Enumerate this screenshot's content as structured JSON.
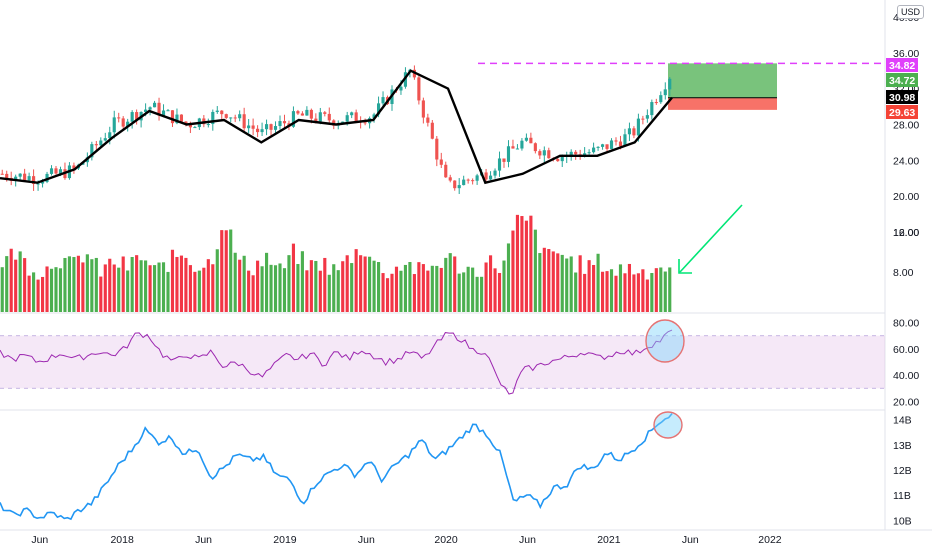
{
  "currency": "USD",
  "colors": {
    "up": "#26a69a",
    "down": "#ef5350",
    "volume_up": "#4caf50",
    "volume_down": "#f23645",
    "ma_line": "#000000",
    "rsi_line": "#9c27b0",
    "rsi_band": "#e1bee7",
    "obv_line": "#2196f3",
    "resistance": "#e040fb",
    "target_zone": "#4caf50",
    "stop_zone": "#f44336",
    "arrow": "#00e676",
    "highlight": "#81d4fa"
  },
  "chart_data": [
    {
      "type": "candlestick",
      "panel": "price",
      "ylim": [
        16,
        41
      ],
      "y_ticks": [
        "40.00",
        "36.00",
        "32.00",
        "28.00",
        "24.00",
        "20.00",
        "16.00"
      ],
      "x": [
        "2017-04",
        "2017-07",
        "2017-10",
        "2018-01",
        "2018-04",
        "2018-07",
        "2018-10",
        "2019-01",
        "2019-04",
        "2019-07",
        "2019-10",
        "2020-01",
        "2020-03",
        "2020-04",
        "2020-06",
        "2020-08",
        "2020-10",
        "2020-12",
        "2021-01"
      ],
      "close": [
        22.5,
        22,
        23,
        28,
        30,
        28,
        29.5,
        27,
        29,
        28.5,
        29,
        34,
        21,
        22.5,
        26,
        24.5,
        25,
        27,
        33.5
      ],
      "moving_average": [
        22,
        21.5,
        23,
        26.5,
        29.5,
        28,
        28.5,
        26,
        28.5,
        28,
        28.5,
        34,
        32,
        21.5,
        22.5,
        24.5,
        24.5,
        26,
        31
      ],
      "price_labels": [
        {
          "value": 34.82,
          "text": "34.82",
          "meaning": "resistance"
        },
        {
          "value": 34.72,
          "text": "34.72",
          "meaning": "target"
        },
        {
          "value": 30.98,
          "text": "30.98",
          "meaning": "entry"
        },
        {
          "value": 29.63,
          "text": "29.63",
          "meaning": "stop"
        }
      ]
    },
    {
      "type": "bar",
      "panel": "volume",
      "y_ticks": [
        "12.00",
        "8.00"
      ],
      "volume_ticks": [
        12,
        8
      ],
      "ylim": [
        4,
        14
      ],
      "values": [
        9,
        10,
        8.5,
        8,
        9.5,
        8.5,
        10,
        8,
        9,
        8.5,
        9.5,
        8,
        9,
        10,
        8.5,
        9,
        13.5,
        9,
        8.5,
        9.5,
        8,
        10,
        8.5,
        9,
        8,
        9.5,
        10.5,
        8.5,
        8,
        9,
        8,
        8.5,
        9.5,
        8.5,
        8,
        9,
        8.5,
        13,
        13,
        9.5,
        10,
        9,
        8.5,
        9,
        8,
        8.5,
        8,
        8.5,
        8.5
      ],
      "direction": [
        "u",
        "d",
        "u",
        "d",
        "u",
        "u",
        "d",
        "u",
        "d",
        "u",
        "u",
        "d",
        "u",
        "d",
        "u",
        "u",
        "d",
        "u",
        "d",
        "u",
        "d",
        "u",
        "d",
        "u",
        "u",
        "d",
        "d",
        "u",
        "d",
        "u",
        "d",
        "u",
        "u",
        "d",
        "u",
        "d",
        "u",
        "d",
        "u",
        "d",
        "u",
        "d",
        "u",
        "d",
        "u",
        "d",
        "u",
        "d",
        "u"
      ]
    },
    {
      "type": "line",
      "panel": "rsi",
      "y_ticks": [
        "80.00",
        "60.00",
        "40.00",
        "20.00"
      ],
      "rsi_ticks": [
        80,
        60,
        40,
        20
      ],
      "ylim": [
        15,
        85
      ],
      "band": [
        30,
        70
      ],
      "values": [
        57,
        52,
        55,
        50,
        53,
        57,
        52,
        55,
        58,
        55,
        60,
        72,
        70,
        56,
        50,
        56,
        52,
        58,
        46,
        50,
        44,
        38,
        47,
        55,
        52,
        57,
        48,
        58,
        52,
        60,
        55,
        50,
        52,
        58,
        52,
        63,
        72,
        68,
        59,
        58,
        37,
        23,
        44,
        46,
        50,
        52,
        55,
        58,
        53,
        55,
        59,
        56,
        62,
        66,
        74
      ]
    },
    {
      "type": "line",
      "panel": "obv",
      "y_ticks": [
        "14B",
        "13B",
        "12B",
        "11B",
        "10B"
      ],
      "obv_ticks": [
        14,
        13,
        12,
        11,
        10
      ],
      "ylim": [
        9.7,
        14.3
      ],
      "values": [
        10.6,
        10.2,
        10.4,
        10.1,
        10.3,
        10,
        10.4,
        10.7,
        11.4,
        12.2,
        12.8,
        13.6,
        13.1,
        13.3,
        12.6,
        12.9,
        11.7,
        12.1,
        12.6,
        12.4,
        12.5,
        11.8,
        11.6,
        10.7,
        11.5,
        11.9,
        12.2,
        11.8,
        12.4,
        11.6,
        12.2,
        12.6,
        13.2,
        12.4,
        12.8,
        13.3,
        13.8,
        13.4,
        12.6,
        10.7,
        11.0,
        10.6,
        11.3,
        11.4,
        12.2,
        12.0,
        12.7,
        12.4,
        12.8,
        13.3,
        13.9,
        14.2
      ]
    }
  ],
  "x_axis_labels": [
    {
      "label": "Jun",
      "position": 0.045
    },
    {
      "label": "2018",
      "position": 0.138
    },
    {
      "label": "Jun",
      "position": 0.23
    },
    {
      "label": "2019",
      "position": 0.322
    },
    {
      "label": "Jun",
      "position": 0.414
    },
    {
      "label": "2020",
      "position": 0.504
    },
    {
      "label": "Jun",
      "position": 0.596
    },
    {
      "label": "2021",
      "position": 0.688
    },
    {
      "label": "Jun",
      "position": 0.78
    },
    {
      "label": "2022",
      "position": 0.87
    }
  ]
}
